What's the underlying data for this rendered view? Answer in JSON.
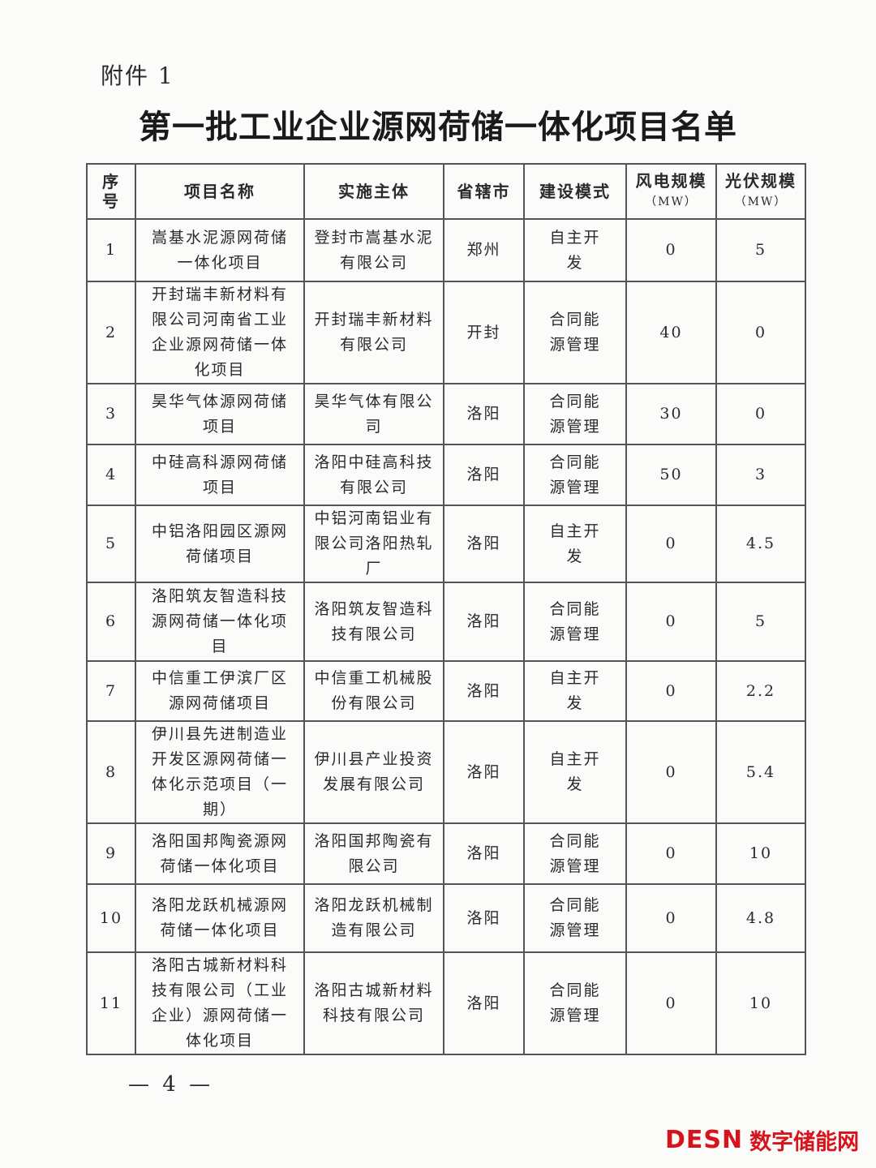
{
  "attachment_label": "附件 1",
  "title": "第一批工业企业源网荷储一体化项目名单",
  "table": {
    "headers": {
      "index": "序号",
      "name": "项目名称",
      "subject": "实施主体",
      "city": "省辖市",
      "mode": "建设模式",
      "wind": "风电规模",
      "wind_unit": "（MW）",
      "pv": "光伏规模",
      "pv_unit": "（MW）"
    },
    "rows": [
      {
        "index": "1",
        "name": "嵩基水泥源网荷储一体化项目",
        "subject": "登封市嵩基水泥有限公司",
        "city": "郑州",
        "mode": "自主开发",
        "wind": "0",
        "pv": "5"
      },
      {
        "index": "2",
        "name": "开封瑞丰新材料有限公司河南省工业企业源网荷储一体化项目",
        "subject": "开封瑞丰新材料有限公司",
        "city": "开封",
        "mode": "合同能源管理",
        "wind": "40",
        "pv": "0"
      },
      {
        "index": "3",
        "name": "昊华气体源网荷储项目",
        "subject": "昊华气体有限公司",
        "city": "洛阳",
        "mode": "合同能源管理",
        "wind": "30",
        "pv": "0"
      },
      {
        "index": "4",
        "name": "中硅高科源网荷储项目",
        "subject": "洛阳中硅高科技有限公司",
        "city": "洛阳",
        "mode": "合同能源管理",
        "wind": "50",
        "pv": "3"
      },
      {
        "index": "5",
        "name": "中铝洛阳园区源网荷储项目",
        "subject": "中铝河南铝业有限公司洛阳热轧厂",
        "city": "洛阳",
        "mode": "自主开发",
        "wind": "0",
        "pv": "4.5"
      },
      {
        "index": "6",
        "name": "洛阳筑友智造科技源网荷储一体化项目",
        "subject": "洛阳筑友智造科技有限公司",
        "city": "洛阳",
        "mode": "合同能源管理",
        "wind": "0",
        "pv": "5"
      },
      {
        "index": "7",
        "name": "中信重工伊滨厂区源网荷储项目",
        "subject": "中信重工机械股份有限公司",
        "city": "洛阳",
        "mode": "自主开发",
        "wind": "0",
        "pv": "2.2"
      },
      {
        "index": "8",
        "name": "伊川县先进制造业开发区源网荷储一体化示范项目（一期）",
        "subject": "伊川县产业投资发展有限公司",
        "city": "洛阳",
        "mode": "自主开发",
        "wind": "0",
        "pv": "5.4"
      },
      {
        "index": "9",
        "name": "洛阳国邦陶瓷源网荷储一体化项目",
        "subject": "洛阳国邦陶瓷有限公司",
        "city": "洛阳",
        "mode": "合同能源管理",
        "wind": "0",
        "pv": "10"
      },
      {
        "index": "10",
        "name": "洛阳龙跃机械源网荷储一体化项目",
        "subject": "洛阳龙跃机械制造有限公司",
        "city": "洛阳",
        "mode": "合同能源管理",
        "wind": "0",
        "pv": "4.8"
      },
      {
        "index": "11",
        "name": "洛阳古城新材料科技有限公司（工业企业）源网荷储一体化项目",
        "subject": "洛阳古城新材料科技有限公司",
        "city": "洛阳",
        "mode": "合同能源管理",
        "wind": "0",
        "pv": "10"
      }
    ]
  },
  "page_number": "— 4 —",
  "watermark": {
    "en": "DESN",
    "cn": "数字储能网",
    "color": "#d7131b"
  }
}
